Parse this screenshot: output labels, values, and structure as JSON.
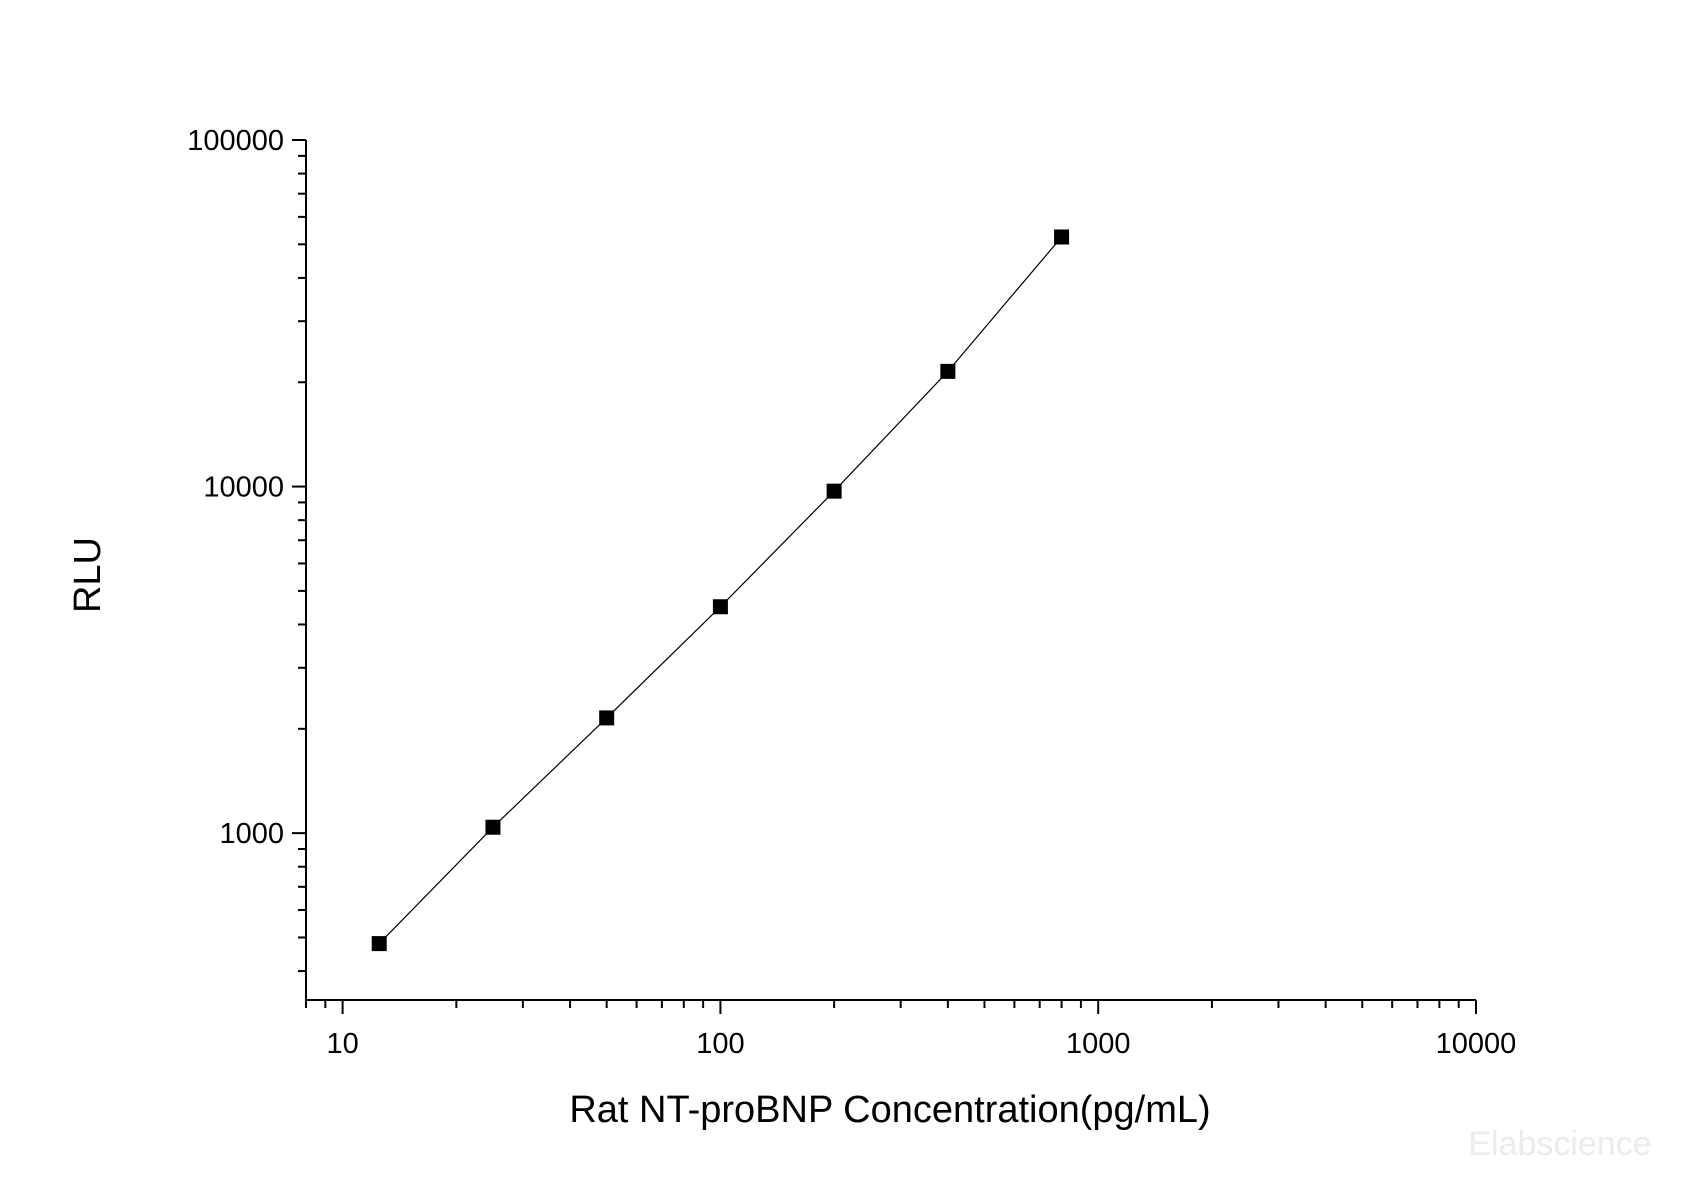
{
  "chart_data": {
    "type": "scatter",
    "xscale": "log",
    "yscale": "log",
    "xlim": [
      8,
      10000
    ],
    "ylim": [
      330,
      100000
    ],
    "xlabel": "Rat NT-proBNP Concentration(pg/mL)",
    "ylabel": "RLU",
    "xticks": [
      "10",
      "100",
      "1000",
      "10000"
    ],
    "yticks": [
      "1000",
      "10000",
      "100000"
    ],
    "grid": false,
    "legend": "none",
    "fit_line": true,
    "marker": "square",
    "colors": {
      "marker": "#000000",
      "line": "#000000",
      "axis": "#000000"
    },
    "series": [
      {
        "x": [
          12.5,
          25,
          50,
          100,
          200,
          400,
          800
        ],
        "y": [
          480,
          1040,
          2150,
          4500,
          9700,
          21500,
          52500
        ]
      }
    ]
  },
  "watermark": "Elabscience"
}
